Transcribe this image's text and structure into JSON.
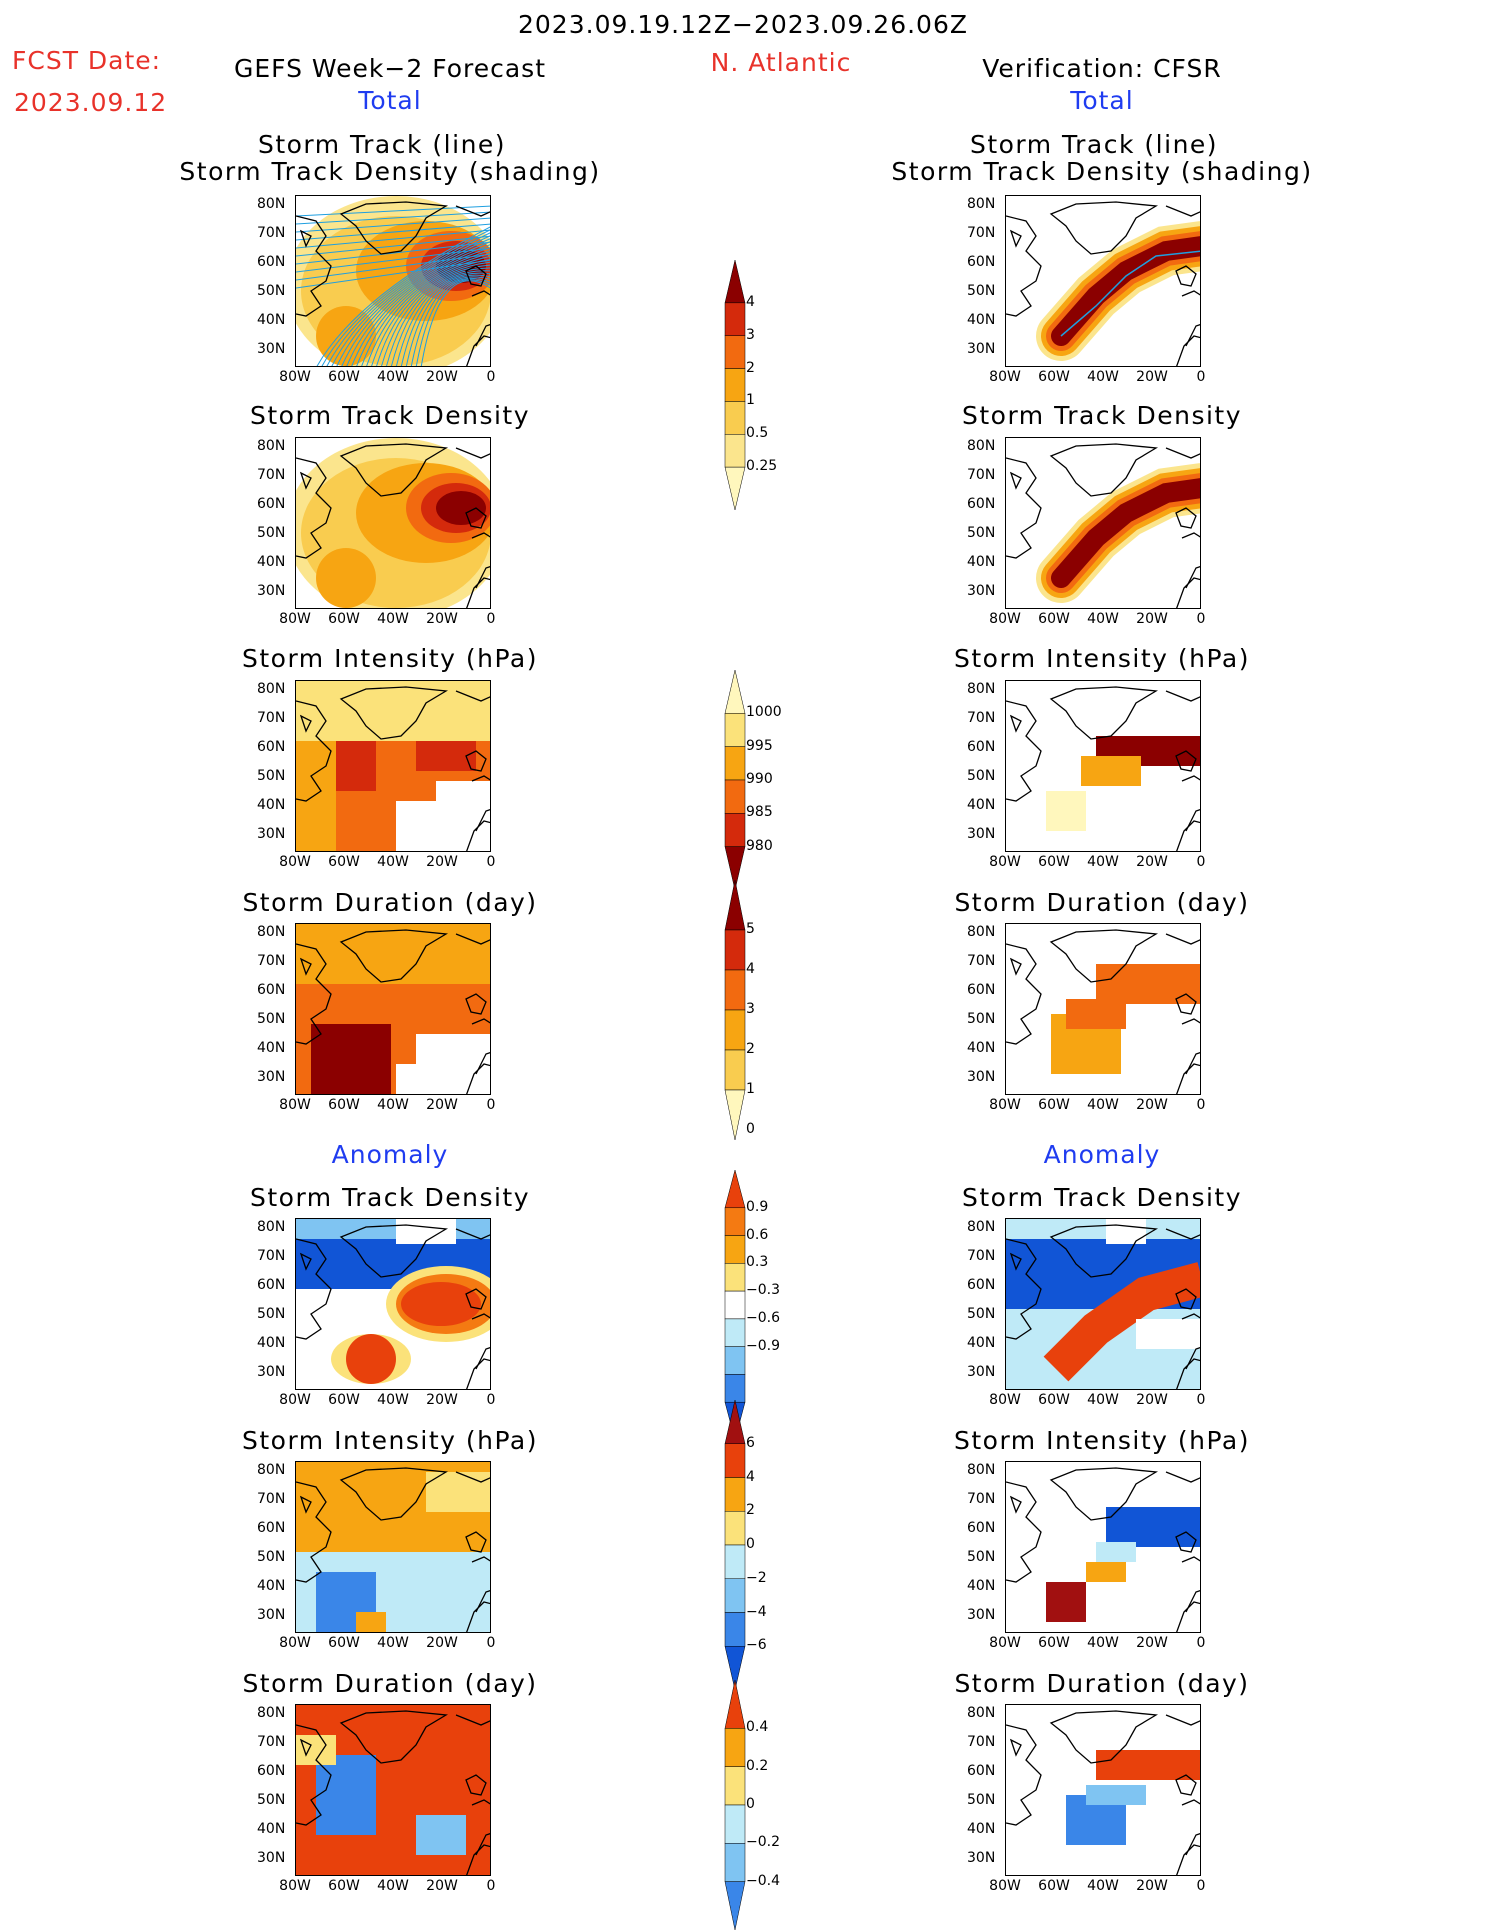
{
  "header": {
    "period": "2023.09.19.12Z−2023.09.26.06Z",
    "fcst_label": "FCST Date:",
    "fcst_date": "2023.09.12",
    "left_title": "GEFS Week−2 Forecast",
    "region": "N. Atlantic",
    "right_title": "Verification: CFSR",
    "total_left": "Total",
    "total_right": "Total",
    "anomaly_left": "Anomaly",
    "anomaly_right": "Anomaly"
  },
  "panel_titles": {
    "track_line": "Storm Track (line)",
    "track_shading": "Storm Track Density (shading)",
    "density": "Storm Track Density",
    "intensity": "Storm Intensity (hPa)",
    "duration": "Storm Duration (day)"
  },
  "axes": {
    "y_ticks": [
      "80N",
      "70N",
      "60N",
      "50N",
      "40N",
      "30N"
    ],
    "x_ticks": [
      "80W",
      "60W",
      "40W",
      "20W",
      "0"
    ]
  },
  "colorbars": {
    "density": {
      "labels": [
        "4",
        "3",
        "2",
        "1",
        "0.5",
        "0.25"
      ],
      "colors": [
        "#8b0000",
        "#d42a0c",
        "#f26a10",
        "#f7a512",
        "#f9cc4f",
        "#fbe58d",
        "#fff7bd"
      ]
    },
    "intensity": {
      "labels": [
        "1000",
        "995",
        "990",
        "985",
        "980"
      ],
      "colors": [
        "#fff7bd",
        "#fbe27a",
        "#f7a512",
        "#f26a10",
        "#d42a0c",
        "#8b0000"
      ]
    },
    "duration": {
      "labels": [
        "5",
        "4",
        "3",
        "2",
        "1",
        "0"
      ],
      "colors": [
        "#8b0000",
        "#d42a0c",
        "#f26a10",
        "#f7a512",
        "#f9cc4f",
        "#fff7bd"
      ]
    },
    "density_anom": {
      "labels": [
        "0.9",
        "0.6",
        "0.3",
        "−0.3",
        "−0.6",
        "−0.9"
      ],
      "colors": [
        "#e8410c",
        "#f47a12",
        "#f7a512",
        "#fbe27a",
        "#ffffff",
        "#bfeaf7",
        "#7fc4f2",
        "#3a86e8",
        "#1155d6"
      ]
    },
    "intensity_anom": {
      "labels": [
        "6",
        "4",
        "2",
        "0",
        "−2",
        "−4",
        "−6"
      ],
      "colors": [
        "#a11010",
        "#e8410c",
        "#f7a512",
        "#fbe27a",
        "#bfeaf7",
        "#7fc4f2",
        "#3a86e8",
        "#1155d6"
      ]
    },
    "duration_anom": {
      "labels": [
        "0.4",
        "0.2",
        "0",
        "−0.2",
        "−0.4"
      ],
      "colors": [
        "#e8410c",
        "#f7a512",
        "#fbe27a",
        "#bfeaf7",
        "#7fc4f2",
        "#3a86e8"
      ]
    }
  },
  "chart_data": [
    {
      "type": "heatmap",
      "name": "GEFS Week−2 Forecast Total — Storm Track (line) / Storm Track Density (shading)",
      "xlim": [
        "80W",
        "0"
      ],
      "ylim": [
        "25N",
        "85N"
      ]
    },
    {
      "type": "heatmap",
      "name": "CFSR Total — Storm Track (line) / Storm Track Density (shading)",
      "xlim": [
        "80W",
        "0"
      ],
      "ylim": [
        "25N",
        "85N"
      ]
    },
    {
      "type": "heatmap",
      "name": "GEFS Total — Storm Track Density",
      "units": "",
      "max_region": "55N 20W",
      "max_value": 4
    },
    {
      "type": "heatmap",
      "name": "CFSR Total — Storm Track Density",
      "max_value": 4
    },
    {
      "type": "heatmap",
      "name": "GEFS Total — Storm Intensity (hPa)",
      "range": [
        980,
        1000
      ]
    },
    {
      "type": "heatmap",
      "name": "CFSR Total — Storm Intensity (hPa)",
      "range": [
        980,
        1000
      ]
    },
    {
      "type": "heatmap",
      "name": "GEFS Total — Storm Duration (day)",
      "range": [
        0,
        5
      ]
    },
    {
      "type": "heatmap",
      "name": "CFSR Total — Storm Duration (day)",
      "range": [
        0,
        5
      ]
    },
    {
      "type": "heatmap",
      "name": "GEFS Anomaly — Storm Track Density",
      "range": [
        -0.9,
        0.9
      ]
    },
    {
      "type": "heatmap",
      "name": "CFSR Anomaly — Storm Track Density",
      "range": [
        -0.9,
        0.9
      ]
    },
    {
      "type": "heatmap",
      "name": "GEFS Anomaly — Storm Intensity (hPa)",
      "range": [
        -6,
        6
      ]
    },
    {
      "type": "heatmap",
      "name": "CFSR Anomaly — Storm Intensity (hPa)",
      "range": [
        -6,
        6
      ]
    },
    {
      "type": "heatmap",
      "name": "GEFS Anomaly — Storm Duration (day)",
      "range": [
        -0.4,
        0.4
      ]
    },
    {
      "type": "heatmap",
      "name": "CFSR Anomaly — Storm Duration (day)",
      "range": [
        -0.4,
        0.4
      ]
    }
  ]
}
